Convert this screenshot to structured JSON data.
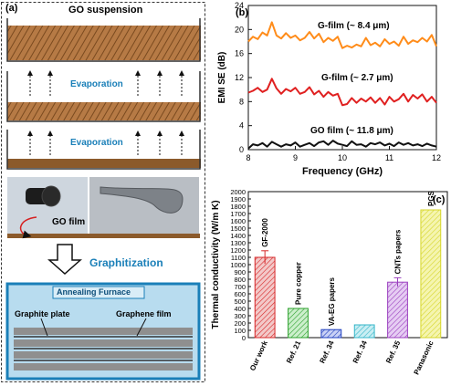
{
  "panel_a": {
    "label": "(a)",
    "gos_label": "GO suspension",
    "evap1_label": "Evaporation",
    "evap2_label": "Evaporation",
    "gofilm_label": "GO film",
    "graphitization_label": "Graphitization",
    "furnace_label": "Annealing Furnace",
    "graphite_plate_label": "Graphite plate",
    "graphene_film_label": "Graphene film",
    "colors": {
      "accent_blue": "#1a7fb8",
      "furnace_bg": "#b8dcef",
      "film_brown": "#8b5a2b"
    }
  },
  "panel_b": {
    "label": "(b)",
    "series_labels": [
      "G-film (~ 8.4 μm)",
      "G-film (~ 2.7 μm)",
      "GO film (~ 11.8 μm)"
    ]
  },
  "panel_c": {
    "label": "(c)",
    "bar_labels": [
      "GF-2000",
      "Pure copper",
      "VA-EG papers",
      "CNTs papers",
      "PGS"
    ]
  },
  "chart_data": [
    {
      "type": "line",
      "xlabel": "Frequency (GHz)",
      "ylabel": "EMI SE (dB)",
      "xlim": [
        8,
        12
      ],
      "ylim": [
        0,
        24
      ],
      "xticks": [
        8,
        9,
        10,
        11,
        12
      ],
      "yticks": [
        0,
        4,
        8,
        12,
        16,
        20,
        24
      ],
      "series": [
        {
          "name": "G-film (~ 8.4 μm)",
          "color": "#ff8c1a",
          "x": [
            8.0,
            8.1,
            8.2,
            8.3,
            8.4,
            8.5,
            8.6,
            8.7,
            8.8,
            8.9,
            9.0,
            9.1,
            9.2,
            9.3,
            9.4,
            9.5,
            9.6,
            9.7,
            9.8,
            9.9,
            10.0,
            10.1,
            10.2,
            10.3,
            10.4,
            10.5,
            10.6,
            10.7,
            10.8,
            10.9,
            11.0,
            11.1,
            11.2,
            11.3,
            11.4,
            11.5,
            11.6,
            11.7,
            11.8,
            11.9,
            12.0
          ],
          "values": [
            18.0,
            18.8,
            18.4,
            19.5,
            19.0,
            21.2,
            19.0,
            18.5,
            19.4,
            18.6,
            19.0,
            18.2,
            18.6,
            19.6,
            18.5,
            19.3,
            17.9,
            18.6,
            18.1,
            18.8,
            16.9,
            17.3,
            17.0,
            17.5,
            17.2,
            18.6,
            17.4,
            17.8,
            17.2,
            18.4,
            17.6,
            18.0,
            17.3,
            18.8,
            17.6,
            18.2,
            17.9,
            18.6,
            18.0,
            19.1,
            17.2
          ]
        },
        {
          "name": "G-film (~ 2.7 μm)",
          "color": "#e02020",
          "x": [
            8.0,
            8.1,
            8.2,
            8.3,
            8.4,
            8.5,
            8.6,
            8.7,
            8.8,
            8.9,
            9.0,
            9.1,
            9.2,
            9.3,
            9.4,
            9.5,
            9.6,
            9.7,
            9.8,
            9.9,
            10.0,
            10.1,
            10.2,
            10.3,
            10.4,
            10.5,
            10.6,
            10.7,
            10.8,
            10.9,
            11.0,
            11.1,
            11.2,
            11.3,
            11.4,
            11.5,
            11.6,
            11.7,
            11.8,
            11.9,
            12.0
          ],
          "values": [
            9.5,
            9.8,
            10.3,
            9.6,
            10.0,
            11.8,
            10.2,
            9.3,
            10.1,
            9.7,
            10.3,
            9.3,
            9.6,
            10.4,
            9.2,
            9.8,
            8.8,
            9.6,
            9.0,
            9.3,
            7.4,
            7.6,
            8.6,
            7.8,
            8.5,
            8.0,
            8.7,
            7.8,
            8.6,
            7.5,
            8.8,
            8.0,
            8.4,
            9.3,
            8.0,
            9.1,
            8.5,
            9.2,
            8.0,
            8.8,
            7.8
          ]
        },
        {
          "name": "GO film (~ 11.8 μm)",
          "color": "#111111",
          "x": [
            8.0,
            8.1,
            8.2,
            8.3,
            8.4,
            8.5,
            8.6,
            8.7,
            8.8,
            8.9,
            9.0,
            9.1,
            9.2,
            9.3,
            9.4,
            9.5,
            9.6,
            9.7,
            9.8,
            9.9,
            10.0,
            10.1,
            10.2,
            10.3,
            10.4,
            10.5,
            10.6,
            10.7,
            10.8,
            10.9,
            11.0,
            11.1,
            11.2,
            11.3,
            11.4,
            11.5,
            11.6,
            11.7,
            11.8,
            11.9,
            12.0
          ],
          "values": [
            0.2,
            0.9,
            0.7,
            1.1,
            0.5,
            1.3,
            0.9,
            0.5,
            0.9,
            0.7,
            1.2,
            0.5,
            0.8,
            1.1,
            0.6,
            1.2,
            1.4,
            0.8,
            1.5,
            1.0,
            0.8,
            0.6,
            1.4,
            0.8,
            0.9,
            0.5,
            1.1,
            0.9,
            1.2,
            0.7,
            1.0,
            0.6,
            1.2,
            0.8,
            1.1,
            0.7,
            0.9,
            0.6,
            1.0,
            0.7,
            0.5
          ]
        }
      ]
    },
    {
      "type": "bar",
      "ylabel": "Thermal conductivity (W/m K)",
      "ylim": [
        0,
        2000
      ],
      "yticks": [
        0,
        100,
        200,
        300,
        400,
        500,
        600,
        700,
        800,
        900,
        1000,
        1100,
        1200,
        1300,
        1400,
        1500,
        1600,
        1700,
        1800,
        1900,
        2000
      ],
      "categories": [
        "Our work",
        "Ref. 21",
        "Ref. 34",
        "Ref. 34",
        "Ref. 35",
        "Panasonic"
      ],
      "values": [
        1100,
        400,
        110,
        175,
        760,
        1750
      ],
      "errors": [
        90,
        0,
        0,
        0,
        60,
        0
      ],
      "colors": [
        "#d62728",
        "#2ca02c",
        "#1f3fbf",
        "#35b6c9",
        "#9b3fbf",
        "#d6d62a"
      ],
      "fills": [
        "#f3c9c9",
        "#ccefcc",
        "#c9d1f5",
        "#c9eef3",
        "#e6cdf3",
        "#f5f5b0"
      ]
    }
  ]
}
